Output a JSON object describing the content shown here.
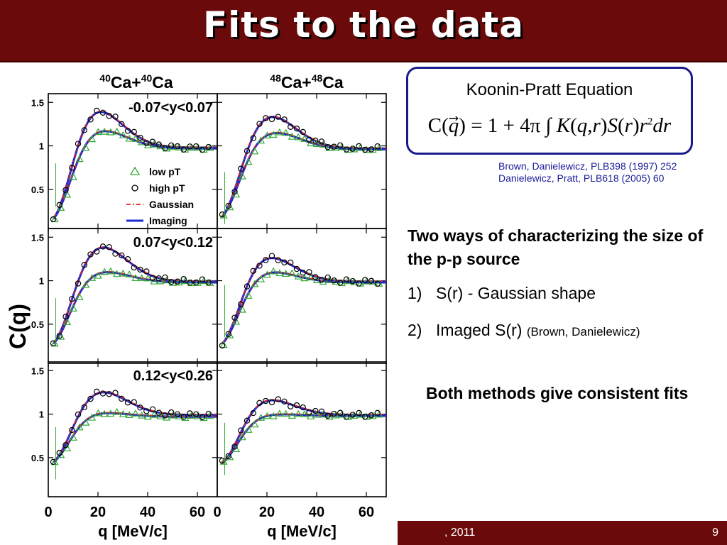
{
  "slide": {
    "title": "Fits to the data",
    "footer_date": ", 2011",
    "page_number": "9"
  },
  "equation_box": {
    "title": "Koonin-Pratt Equation",
    "equation": "C(q⃗) = 1 + 4π ∫ K(q,r) S(r) r² dr"
  },
  "references": [
    "Brown, Danielewicz, PLB398 (1997) 252",
    "Danielewicz, Pratt, PLB618 (2005) 60"
  ],
  "text": {
    "heading": "Two ways of characterizing the size of the p-p source",
    "items": [
      {
        "num": "1)",
        "text": "S(r) - Gaussian shape",
        "note": ""
      },
      {
        "num": "2)",
        "text": "Imaged S(r)",
        "note": "(Brown, Danielewicz)"
      }
    ],
    "conclusion": "Both methods give consistent fits"
  },
  "colors": {
    "title_bar": "#6b0a0a",
    "low_pt": "#33aa33",
    "high_pt": "#000000",
    "gaussian": "#dd2222",
    "imaging": "#1a2ad0",
    "reference_text": "#1a1a9a"
  },
  "chart_data": {
    "type": "scatter",
    "title": "",
    "ylabel": "C(q)",
    "xlabel": "q [MeV/c]",
    "column_titles": [
      {
        "base": "Ca+",
        "sup1": "40",
        "sup2": "40",
        "el": "Ca"
      },
      {
        "base": "Ca+",
        "sup1": "48",
        "sup2": "48",
        "el": "Ca"
      }
    ],
    "row_labels": [
      "-0.07<y<0.07",
      "0.07<y<0.12",
      "0.12<y<0.26"
    ],
    "xlim": [
      0,
      68
    ],
    "ylim": [
      0.05,
      1.6
    ],
    "xticks": [
      0,
      20,
      40,
      60
    ],
    "yticks": [
      0.5,
      1,
      1.5
    ],
    "legend": {
      "position": "panel top-left, center-left",
      "entries": [
        {
          "name": "low pT",
          "marker": "triangle",
          "color": "#33aa33"
        },
        {
          "name": "high pT",
          "marker": "circle",
          "color": "#000000"
        },
        {
          "name": "Gaussian",
          "marker": "dashdot-line",
          "color": "#dd2222"
        },
        {
          "name": "Imaging",
          "marker": "line",
          "color": "#1a2ad0"
        }
      ]
    },
    "panels": [
      {
        "row": 0,
        "col": 0,
        "high_pt": {
          "y0": 0.13,
          "peak": 1.44,
          "qp": 18,
          "inf": 0.98
        },
        "low_pt": {
          "y0": 0.13,
          "peak": 1.19,
          "qp": 20,
          "inf": 0.97
        }
      },
      {
        "row": 0,
        "col": 1,
        "high_pt": {
          "y0": 0.16,
          "peak": 1.36,
          "qp": 20,
          "inf": 0.97
        },
        "low_pt": {
          "y0": 0.16,
          "peak": 1.16,
          "qp": 22,
          "inf": 0.96
        }
      },
      {
        "row": 1,
        "col": 0,
        "high_pt": {
          "y0": 0.25,
          "peak": 1.41,
          "qp": 20,
          "inf": 0.99
        },
        "low_pt": {
          "y0": 0.25,
          "peak": 1.11,
          "qp": 21,
          "inf": 0.98
        }
      },
      {
        "row": 1,
        "col": 1,
        "high_pt": {
          "y0": 0.25,
          "peak": 1.29,
          "qp": 19,
          "inf": 0.99
        },
        "low_pt": {
          "y0": 0.25,
          "peak": 1.11,
          "qp": 20,
          "inf": 0.98
        }
      },
      {
        "row": 2,
        "col": 0,
        "high_pt": {
          "y0": 0.43,
          "peak": 1.27,
          "qp": 20,
          "inf": 0.99
        },
        "low_pt": {
          "y0": 0.43,
          "peak": 1.02,
          "qp": 20,
          "inf": 0.97
        }
      },
      {
        "row": 2,
        "col": 1,
        "high_pt": {
          "y0": 0.42,
          "peak": 1.18,
          "qp": 19,
          "inf": 0.99
        },
        "low_pt": {
          "y0": 0.42,
          "peak": 1.0,
          "qp": 22,
          "inf": 0.98
        }
      }
    ]
  }
}
